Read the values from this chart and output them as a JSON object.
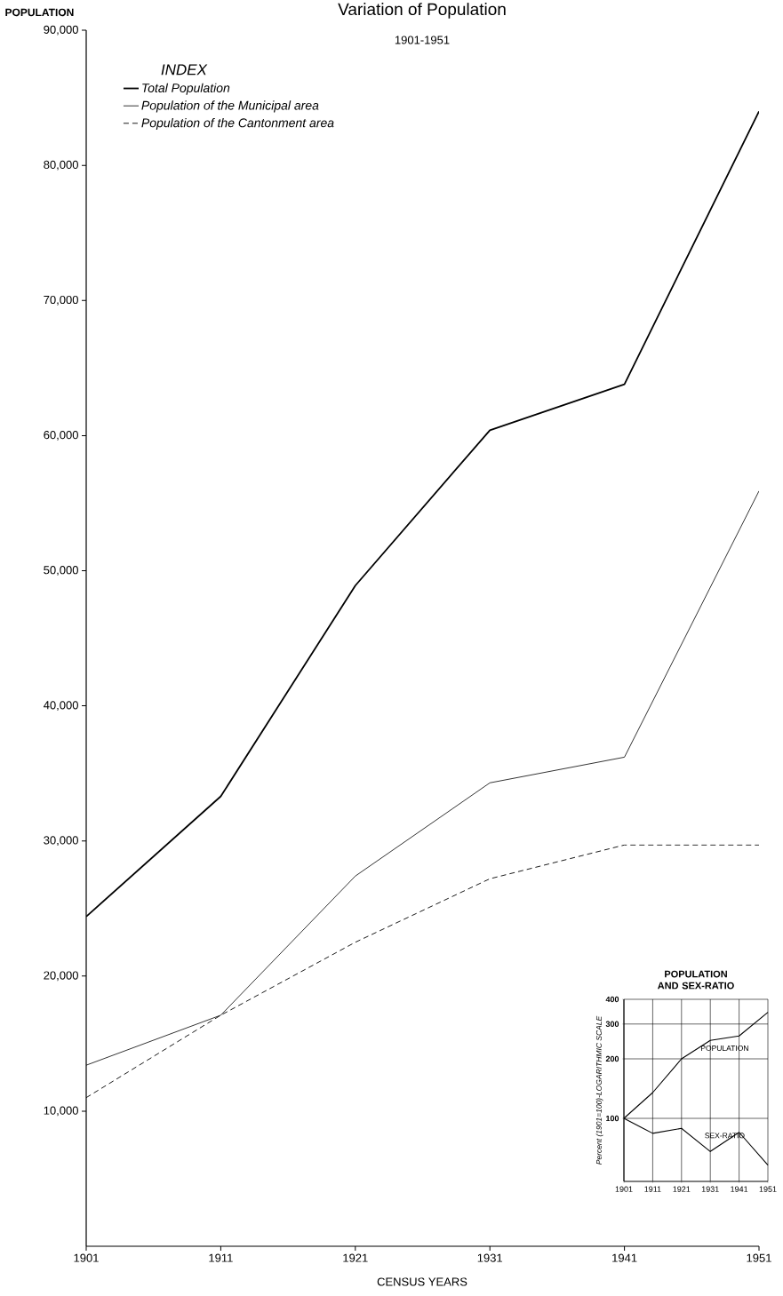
{
  "chart_data": [
    {
      "type": "line",
      "title": "Variation of Population",
      "subtitle": "1901-1951",
      "xlabel": "CENSUS YEARS",
      "ylabel": "POPULATION",
      "legend_title": "INDEX",
      "legend": "top left",
      "x": [
        1901,
        1911,
        1921,
        1931,
        1941,
        1951
      ],
      "series": [
        {
          "name": "Total Population",
          "color": "#000000",
          "line_style": "solid",
          "values": [
            24400,
            33300,
            48900,
            60400,
            63800,
            84000
          ]
        },
        {
          "name": "Population of the Municipal area",
          "color": "#000000",
          "line_style": "solid",
          "values": [
            13400,
            17100,
            27400,
            34300,
            36200,
            55900
          ]
        },
        {
          "name": "Population of the Cantonment area",
          "color": "#000000",
          "line_style": "dashed",
          "values": [
            11000,
            17100,
            22500,
            27200,
            29700,
            29700
          ]
        }
      ],
      "xlim": [
        1901,
        1951
      ],
      "xticks": [
        1901,
        1911,
        1921,
        1931,
        1941,
        1951
      ],
      "ylim": [
        0,
        90000
      ],
      "yticks": [
        {
          "value": 10000,
          "label": "10,000"
        },
        {
          "value": 20000,
          "label": "20,000"
        },
        {
          "value": 30000,
          "label": "30,000"
        },
        {
          "value": 40000,
          "label": "40,000"
        },
        {
          "value": 50000,
          "label": "50,000"
        },
        {
          "value": 60000,
          "label": "60,000"
        },
        {
          "value": 70000,
          "label": "70,000"
        },
        {
          "value": 80000,
          "label": "80,000"
        },
        {
          "value": 90000,
          "label": "90,000"
        }
      ]
    },
    {
      "type": "line",
      "title": "POPULATION AND SEX-RATIO",
      "ylabel": "Percent (1901=100)-LOGARITHMIC SCALE",
      "log": "y",
      "grid": true,
      "x": [
        1901,
        1911,
        1921,
        1931,
        1941,
        1951
      ],
      "series": [
        {
          "name": "POPULATION",
          "color": "#000000",
          "values": [
            100,
            135,
            200,
            248,
            261,
            344
          ]
        },
        {
          "name": "SEX-RATIO",
          "color": "#000000",
          "values": [
            100,
            84,
            89,
            68,
            85,
            58
          ]
        }
      ],
      "xlim": [
        1901,
        1951
      ],
      "xticks": [
        1901,
        1911,
        1921,
        1931,
        1941,
        1951
      ],
      "ylim": [
        48,
        400
      ],
      "yticks": [
        100,
        200,
        300,
        400
      ]
    }
  ]
}
